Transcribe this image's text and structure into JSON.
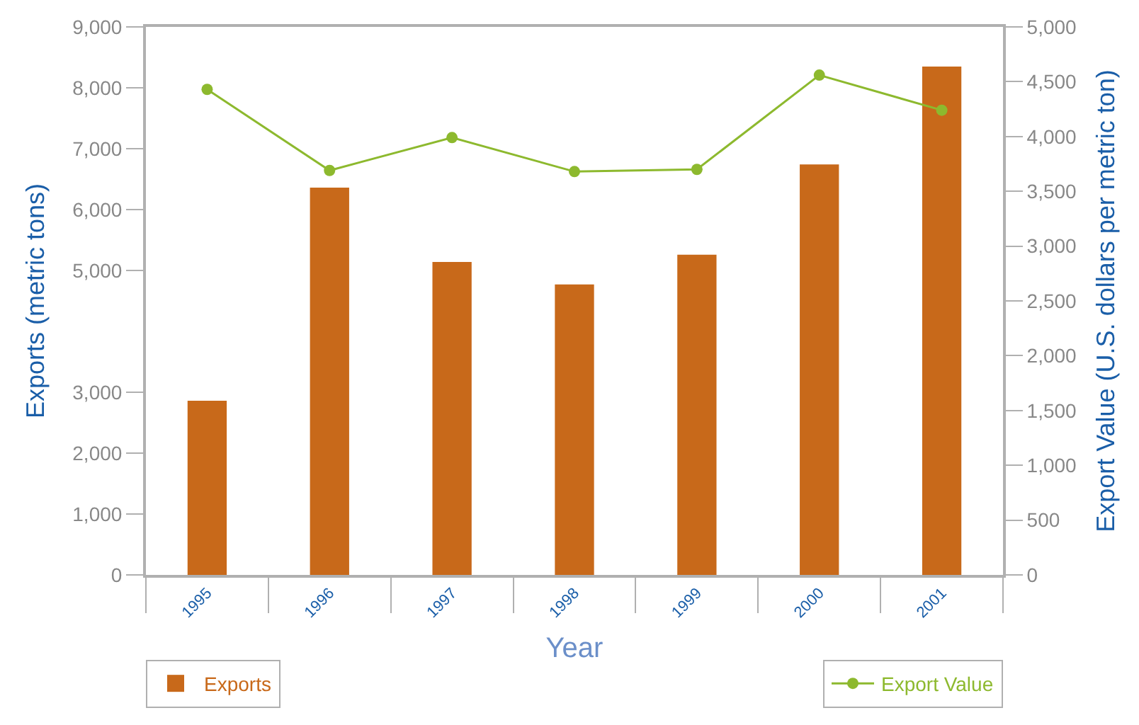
{
  "chart_data": {
    "type": "bar",
    "categories": [
      "1995",
      "1996",
      "1997",
      "1998",
      "1999",
      "2000",
      "2001"
    ],
    "xlabel": "Year",
    "ylabel": "Exports (metric tons)",
    "y2label": "Export Value (U.S. dollars per metric ton)",
    "series": [
      {
        "name": "Exports",
        "color": "#c8691a",
        "values": [
          2860,
          6360,
          5140,
          4770,
          5260,
          6740,
          8350
        ]
      },
      {
        "name": "Export Value",
        "type": "line",
        "axis": "y2",
        "color": "#8db92e",
        "marker": "circle",
        "values": [
          4430,
          3690,
          3990,
          3680,
          3700,
          4560,
          4240
        ]
      }
    ],
    "ylim": [
      0,
      9000
    ],
    "yticks": [
      {
        "value": 0,
        "label": "0"
      },
      {
        "value": 1000,
        "label": "1,000"
      },
      {
        "value": 2000,
        "label": "2,000"
      },
      {
        "value": 3000,
        "label": "3,000"
      },
      {
        "value": 5000,
        "label": "5,000"
      },
      {
        "value": 6000,
        "label": "6,000"
      },
      {
        "value": 7000,
        "label": "7,000"
      },
      {
        "value": 8000,
        "label": "8,000"
      },
      {
        "value": 9000,
        "label": "9,000"
      }
    ],
    "y2lim": [
      0,
      5000
    ],
    "y2ticks": [
      {
        "value": 0,
        "label": "0"
      },
      {
        "value": 500,
        "label": "500"
      },
      {
        "value": 1000,
        "label": "1,000"
      },
      {
        "value": 1500,
        "label": "1,500"
      },
      {
        "value": 2000,
        "label": "2,000"
      },
      {
        "value": 2500,
        "label": "2,500"
      },
      {
        "value": 3000,
        "label": "3,000"
      },
      {
        "value": 3500,
        "label": "3,500"
      },
      {
        "value": 4000,
        "label": "4,000"
      },
      {
        "value": 4500,
        "label": "4,500"
      },
      {
        "value": 5000,
        "label": "5,000"
      }
    ],
    "legend": "bottom"
  }
}
